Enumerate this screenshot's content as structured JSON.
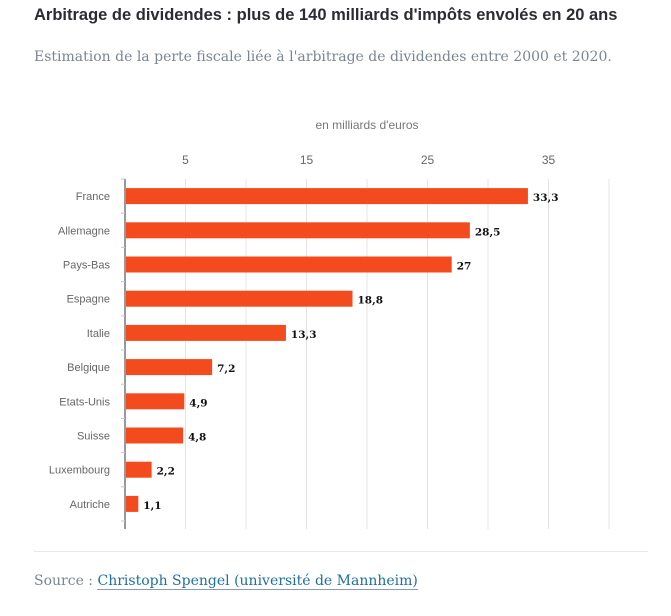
{
  "header": {
    "title": "Arbitrage de dividendes : plus de 140 milliards d'impôts envolés en 20 ans",
    "subtitle": "Estimation de la perte fiscale liée à l'arbitrage de dividendes entre 2000 et 2020."
  },
  "chart_data": {
    "type": "bar",
    "orientation": "horizontal",
    "xlabel": "en milliards d'euros",
    "xlim": [
      0,
      40
    ],
    "xticks": [
      5,
      15,
      25,
      35
    ],
    "grid": true,
    "categories": [
      "France",
      "Allemagne",
      "Pays-Bas",
      "Espagne",
      "Italie",
      "Belgique",
      "Etats-Unis",
      "Suisse",
      "Luxembourg",
      "Autriche"
    ],
    "values": [
      33.3,
      28.5,
      27,
      18.8,
      13.3,
      7.2,
      4.9,
      4.8,
      2.2,
      1.1
    ],
    "data_labels": [
      "33,3",
      "28,5",
      "27",
      "18,8",
      "13,3",
      "7,2",
      "4,9",
      "4,8",
      "2,2",
      "1,1"
    ],
    "bar_color": "#f44b1e"
  },
  "footer": {
    "source_prefix": "Source : ",
    "source_link": "Christoph Spengel (université de Mannheim)"
  }
}
